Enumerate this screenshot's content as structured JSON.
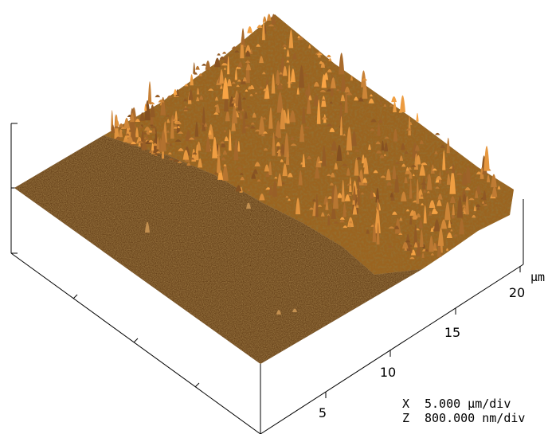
{
  "axis": {
    "ticks": [
      "5",
      "10",
      "15",
      "20"
    ],
    "unit": "μm"
  },
  "scale": [
    {
      "axis": "X",
      "value": "5.000 μm/div"
    },
    {
      "axis": "Z",
      "value": "800.000 nm/div"
    }
  ]
}
